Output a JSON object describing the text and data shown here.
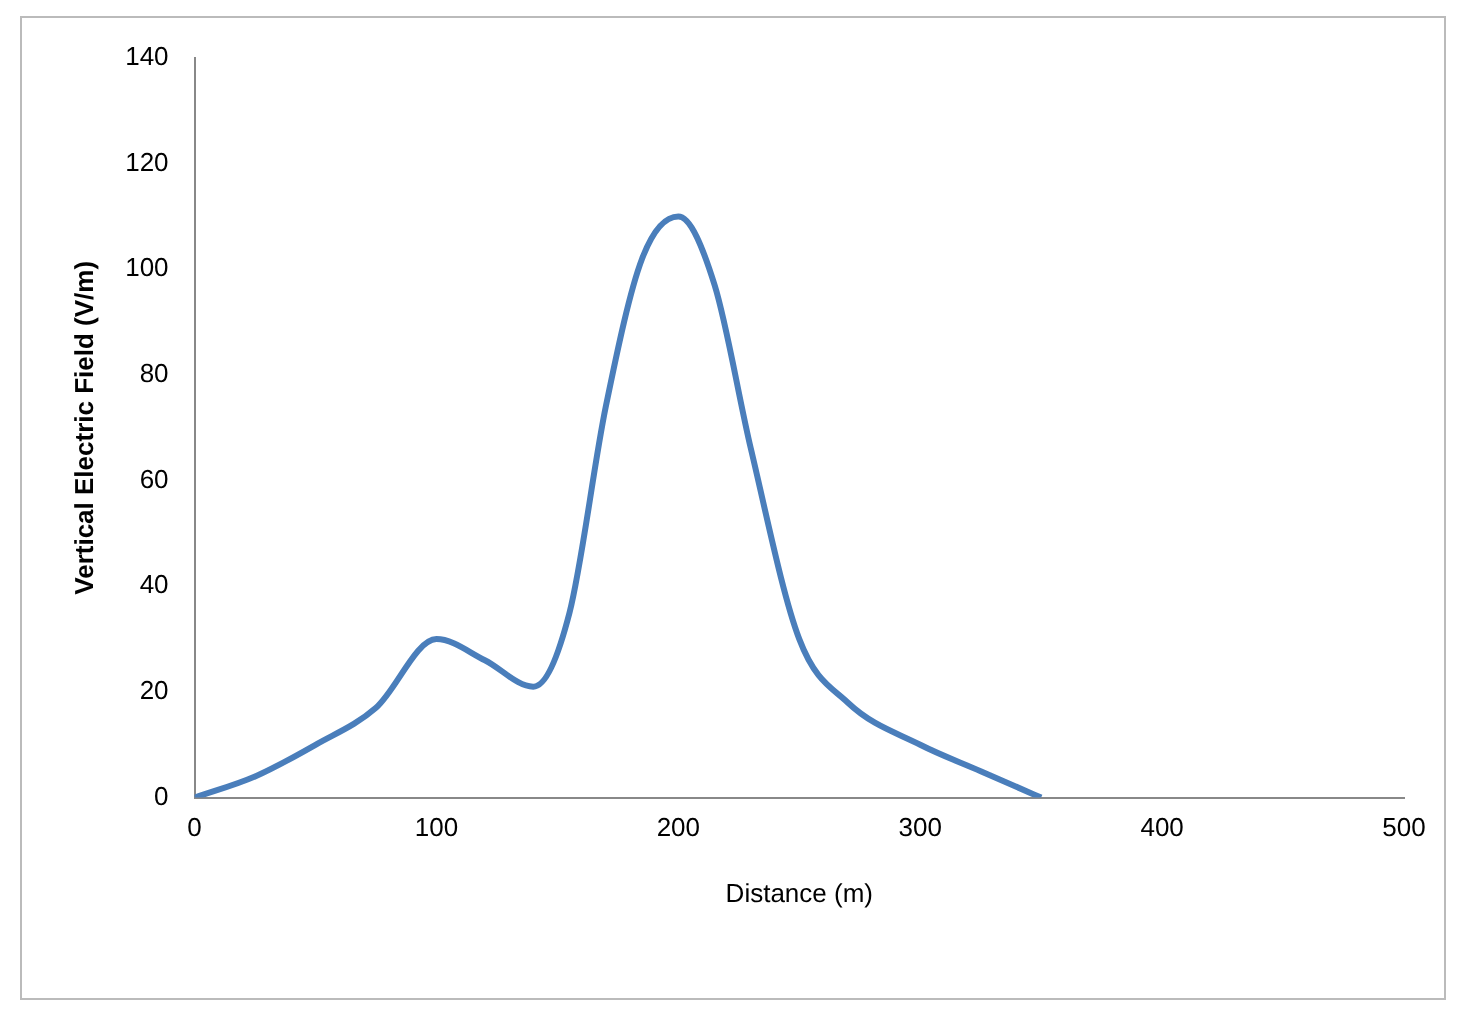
{
  "chart_data": {
    "type": "line",
    "xlabel": "Distance (m)",
    "ylabel": "Vertical Electric Field (V/m)",
    "x": [
      0,
      25,
      50,
      75,
      100,
      120,
      140,
      155,
      170,
      185,
      200,
      215,
      230,
      250,
      270,
      300,
      325,
      350
    ],
    "series": [
      {
        "color": "#4a7ebb",
        "values": [
          0,
          4,
          10,
          17,
          30,
          26,
          21,
          35,
          74,
          102,
          110,
          97,
          66,
          30,
          18,
          10,
          5,
          0
        ]
      }
    ],
    "xlim": [
      0,
      500
    ],
    "xticks": [
      0,
      100,
      200,
      300,
      400,
      500
    ],
    "ylim": [
      0,
      140
    ],
    "yticks": [
      0,
      20,
      40,
      60,
      80,
      100,
      120,
      140
    ],
    "grid": false,
    "legend": false,
    "marker": "none",
    "line_style": "solid"
  }
}
